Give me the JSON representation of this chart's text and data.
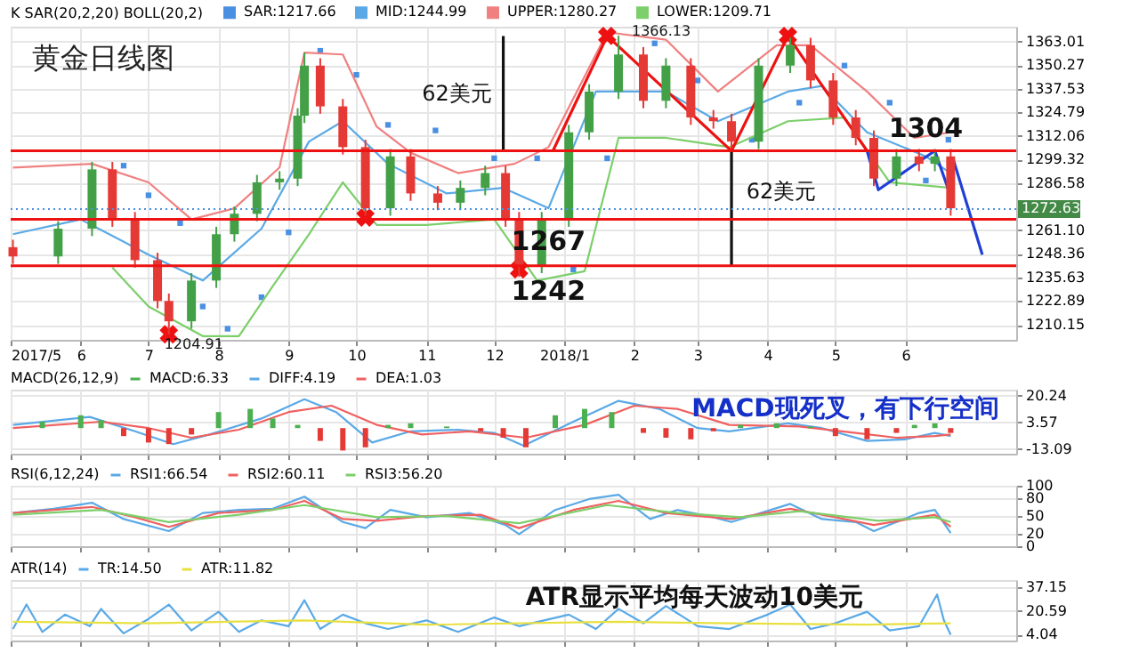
{
  "chart_data": [
    {
      "type": "candlestick",
      "title": "黄金日线图",
      "legend_title": "K  SAR(20,2,20)  BOLL(20,2)",
      "legend": "top left",
      "grid": true,
      "x": [
        "2017-05-02",
        "2017-05-22",
        "2017-06-06",
        "2017-06-15",
        "2017-06-25",
        "2017-07-05",
        "2017-07-10",
        "2017-07-20",
        "2017-07-31",
        "2017-08-08",
        "2017-08-18",
        "2017-08-28",
        "2017-09-05",
        "2017-09-08",
        "2017-09-15",
        "2017-09-25",
        "2017-10-05",
        "2017-10-16",
        "2017-10-25",
        "2017-11-06",
        "2017-11-16",
        "2017-11-27",
        "2017-12-06",
        "2017-12-12",
        "2017-12-22",
        "2018-01-03",
        "2018-01-12",
        "2018-01-25",
        "2018-02-05",
        "2018-02-15",
        "2018-02-26",
        "2018-03-08",
        "2018-03-16",
        "2018-03-28",
        "2018-04-11",
        "2018-04-20",
        "2018-04-30",
        "2018-05-10",
        "2018-05-18",
        "2018-05-28",
        "2018-06-07",
        "2018-06-14",
        "2018-06-21"
      ],
      "ohlc": [
        [
          1252,
          1256,
          1243,
          1247
        ],
        [
          1247,
          1266,
          1243,
          1262
        ],
        [
          1262,
          1298,
          1258,
          1294
        ],
        [
          1294,
          1298,
          1263,
          1267
        ],
        [
          1267,
          1271,
          1241,
          1245
        ],
        [
          1245,
          1249,
          1219,
          1223
        ],
        [
          1223,
          1227,
          1204.91,
          1212
        ],
        [
          1212,
          1238,
          1208,
          1234
        ],
        [
          1234,
          1263,
          1230,
          1259
        ],
        [
          1259,
          1274,
          1255,
          1270
        ],
        [
          1270,
          1291,
          1266,
          1287
        ],
        [
          1287,
          1293,
          1283,
          1289
        ],
        [
          1289,
          1327,
          1285,
          1323
        ],
        [
          1323,
          1357,
          1319,
          1350
        ],
        [
          1350,
          1354,
          1324,
          1328
        ],
        [
          1328,
          1332,
          1302,
          1306
        ],
        [
          1306,
          1310,
          1269,
          1273
        ],
        [
          1273,
          1305,
          1269,
          1301
        ],
        [
          1301,
          1305,
          1277,
          1281
        ],
        [
          1281,
          1285,
          1272,
          1276
        ],
        [
          1276,
          1288,
          1272,
          1284
        ],
        [
          1284,
          1296,
          1280,
          1292
        ],
        [
          1292,
          1296,
          1263,
          1267
        ],
        [
          1267,
          1271,
          1236,
          1242
        ],
        [
          1242,
          1271,
          1238,
          1267
        ],
        [
          1267,
          1318,
          1263,
          1314
        ],
        [
          1314,
          1340,
          1310,
          1336
        ],
        [
          1336,
          1366.13,
          1332,
          1356
        ],
        [
          1356,
          1360,
          1327,
          1331
        ],
        [
          1331,
          1354,
          1327,
          1350
        ],
        [
          1350,
          1354,
          1318,
          1322
        ],
        [
          1322,
          1326,
          1316,
          1320
        ],
        [
          1320,
          1324,
          1305,
          1309
        ],
        [
          1309,
          1354,
          1305,
          1350
        ],
        [
          1350,
          1365,
          1346,
          1361
        ],
        [
          1361,
          1365,
          1338,
          1342
        ],
        [
          1342,
          1346,
          1318,
          1322
        ],
        [
          1322,
          1326,
          1307,
          1311
        ],
        [
          1311,
          1315,
          1285,
          1289
        ],
        [
          1289,
          1305,
          1285,
          1301
        ],
        [
          1301,
          1305,
          1293,
          1297
        ],
        [
          1297,
          1305,
          1293,
          1301
        ],
        [
          1301,
          1305,
          1269,
          1273
        ]
      ],
      "colors": [
        "#e53935",
        "#43a047",
        "#43a047",
        "#e53935",
        "#e53935",
        "#e53935",
        "#e53935",
        "#43a047",
        "#43a047",
        "#43a047",
        "#43a047",
        "#43a047",
        "#43a047",
        "#43a047",
        "#e53935",
        "#e53935",
        "#e53935",
        "#43a047",
        "#e53935",
        "#e53935",
        "#43a047",
        "#43a047",
        "#e53935",
        "#e53935",
        "#43a047",
        "#43a047",
        "#43a047",
        "#43a047",
        "#e53935",
        "#43a047",
        "#e53935",
        "#e53935",
        "#e53935",
        "#43a047",
        "#43a047",
        "#e53935",
        "#e53935",
        "#e53935",
        "#e53935",
        "#43a047",
        "#e53935",
        "#43a047",
        "#e53935"
      ],
      "series": [
        {
          "name": "SAR:1217.66",
          "type": "scatter",
          "marker": "square",
          "color": "#4a90e2",
          "x": [
            "2017-06-20",
            "2017-07-01",
            "2017-07-15",
            "2017-07-25",
            "2017-08-05",
            "2017-08-20",
            "2017-09-01",
            "2017-09-15",
            "2017-10-01",
            "2017-10-15",
            "2017-11-05",
            "2017-12-01",
            "2017-12-20",
            "2018-01-05",
            "2018-01-20",
            "2018-02-10",
            "2018-03-01",
            "2018-03-25",
            "2018-04-15",
            "2018-05-05",
            "2018-05-25",
            "2018-06-10",
            "2018-06-20"
          ],
          "values": [
            1296,
            1280,
            1265,
            1220,
            1208,
            1225,
            1260,
            1358,
            1345,
            1318,
            1315,
            1300,
            1300,
            1240,
            1300,
            1362,
            1342,
            1310,
            1330,
            1350,
            1330,
            1288,
            1310
          ]
        },
        {
          "name": "MID:1244.99",
          "type": "line",
          "color": "#5aa9e6",
          "x": [
            "2017-05-02",
            "2017-06-01",
            "2017-07-01",
            "2017-07-25",
            "2017-08-20",
            "2017-09-10",
            "2017-09-25",
            "2017-10-15",
            "2017-11-10",
            "2017-12-05",
            "2017-12-25",
            "2018-01-15",
            "2018-02-15",
            "2018-03-10",
            "2018-04-10",
            "2018-04-25",
            "2018-05-15",
            "2018-06-10",
            "2018-06-21"
          ],
          "values": [
            1259,
            1267,
            1248,
            1234,
            1262,
            1309,
            1320,
            1297,
            1281,
            1284,
            1273,
            1336,
            1336,
            1320,
            1336,
            1339,
            1314,
            1301,
            1292
          ]
        },
        {
          "name": "UPPER:1280.27",
          "type": "line",
          "color": "#f08080",
          "x": [
            "2017-05-02",
            "2017-06-06",
            "2017-07-01",
            "2017-07-20",
            "2017-08-08",
            "2017-08-28",
            "2017-09-08",
            "2017-09-25",
            "2017-10-10",
            "2017-10-25",
            "2017-11-15",
            "2017-12-10",
            "2017-12-25",
            "2018-01-20",
            "2018-02-15",
            "2018-03-10",
            "2018-04-05",
            "2018-04-20",
            "2018-05-15",
            "2018-06-05",
            "2018-06-21"
          ],
          "values": [
            1295,
            1297,
            1287,
            1267,
            1273,
            1295,
            1357,
            1356,
            1317,
            1303,
            1292,
            1297,
            1306,
            1368,
            1364,
            1336,
            1361,
            1361,
            1336,
            1311,
            1314
          ]
        },
        {
          "name": "LOWER:1209.71",
          "type": "line",
          "color": "#7ccf6a",
          "x": [
            "2017-06-15",
            "2017-07-01",
            "2017-07-25",
            "2017-08-10",
            "2017-08-25",
            "2017-09-10",
            "2017-09-25",
            "2017-10-10",
            "2017-11-01",
            "2017-12-01",
            "2017-12-20",
            "2018-01-10",
            "2018-01-25",
            "2018-02-15",
            "2018-03-15",
            "2018-04-10",
            "2018-05-05",
            "2018-05-25",
            "2018-06-21"
          ],
          "values": [
            1241,
            1220,
            1204,
            1204,
            1231,
            1259,
            1287,
            1264,
            1264,
            1267,
            1234,
            1239,
            1311,
            1311,
            1306,
            1320,
            1322,
            1287,
            1284
          ]
        },
        {
          "type": "line",
          "color": "#ee1111",
          "x": [
            "2017-12-27",
            "2018-01-20",
            "2018-03-16",
            "2018-04-10",
            "2018-05-15"
          ],
          "values": [
            1304,
            1366,
            1304,
            1366,
            1304
          ]
        },
        {
          "type": "scatter",
          "marker": "cross",
          "color": "#ee1111",
          "x": [
            "2017-07-10",
            "2017-10-05",
            "2017-12-12",
            "2018-01-20",
            "2018-04-10"
          ],
          "values": [
            1205,
            1268,
            1240,
            1366,
            1366
          ]
        },
        {
          "type": "line",
          "color": "#1f3fd6",
          "x": [
            "2018-05-15",
            "2018-05-20",
            "2018-06-14",
            "2018-06-20"
          ],
          "values": [
            1304,
            1283,
            1304,
            1283
          ]
        },
        {
          "type": "line",
          "color": "#1f3fd6",
          "x": [
            "2018-06-22",
            "2018-07-05"
          ],
          "values": [
            1300,
            1248
          ]
        },
        {
          "type": "line",
          "color": "#111111",
          "x": [
            "2017-12-05",
            "2017-12-05"
          ],
          "values": [
            1304,
            1366
          ]
        },
        {
          "type": "line",
          "color": "#111111",
          "x": [
            "2018-03-16",
            "2018-03-16"
          ],
          "values": [
            1304,
            1242
          ]
        }
      ],
      "ref_lines": [
        {
          "axis": "y",
          "value": 1304,
          "color": "#ee1111"
        },
        {
          "axis": "y",
          "value": 1267,
          "color": "#ee1111"
        },
        {
          "axis": "y",
          "value": 1242,
          "color": "#ee1111"
        },
        {
          "axis": "y",
          "value": 1272.63,
          "label": "1272.63",
          "color": "#4a90e2",
          "line_style": "dotted"
        }
      ],
      "annotations": [
        {
          "text": "62美元",
          "x": "2017-12-05",
          "y": 1335
        },
        {
          "text": "62美元",
          "x": "2018-03-16",
          "y": 1282
        },
        {
          "text": "1304",
          "x": "2018-06-10",
          "y": 1304
        },
        {
          "text": "1267",
          "x": "2017-12-25",
          "y": 1267
        },
        {
          "text": "1242",
          "x": "2017-12-25",
          "y": 1242
        },
        {
          "text": "1204.91",
          "x": "2017-07-10",
          "y": 1204.91
        },
        {
          "text": "1366.13",
          "x": "2018-01-25",
          "y": 1366.13
        }
      ],
      "xlim": [
        "2017-05-01",
        "2018-07-20"
      ],
      "ylim": [
        1202,
        1371
      ],
      "xticks": [
        {
          "value": "2017-05-01",
          "label": "2017/5"
        },
        {
          "value": "2017-06-01",
          "label": "6"
        },
        {
          "value": "2017-07-01",
          "label": "7"
        },
        {
          "value": "2017-08-01",
          "label": "8"
        },
        {
          "value": "2017-09-01",
          "label": "9"
        },
        {
          "value": "2017-10-01",
          "label": "10"
        },
        {
          "value": "2017-11-01",
          "label": "11"
        },
        {
          "value": "2017-12-01",
          "label": "12"
        },
        {
          "value": "2018-01-01",
          "label": "2018/1"
        },
        {
          "value": "2018-02-01",
          "label": "2"
        },
        {
          "value": "2018-03-01",
          "label": "3"
        },
        {
          "value": "2018-04-01",
          "label": "4"
        },
        {
          "value": "2018-05-01",
          "label": "5"
        },
        {
          "value": "2018-06-01",
          "label": "6"
        }
      ],
      "yticks": [
        1210.15,
        1222.89,
        1235.63,
        1248.36,
        {
          "value": 1261.1,
          "label": "1261.10"
        },
        1286.58,
        1299.32,
        1312.06,
        1324.79,
        1337.53,
        1350.27,
        1363.01
      ]
    },
    {
      "type": "bar",
      "legend_title": "MACD(26,12,9)",
      "legend": "top left",
      "grid": true,
      "tick_labels": "y",
      "series": [
        {
          "name": "MACD:6.33",
          "type": "bar",
          "x": [
            "2017-05-15",
            "2017-06-01",
            "2017-06-10",
            "2017-06-20",
            "2017-07-01",
            "2017-07-10",
            "2017-07-20",
            "2017-08-01",
            "2017-08-15",
            "2017-08-25",
            "2017-09-05",
            "2017-09-15",
            "2017-09-25",
            "2017-10-05",
            "2017-10-15",
            "2017-10-25",
            "2017-11-10",
            "2017-11-25",
            "2017-12-05",
            "2017-12-15",
            "2017-12-28",
            "2018-01-10",
            "2018-01-22",
            "2018-02-05",
            "2018-02-15",
            "2018-02-26",
            "2018-03-08",
            "2018-03-20",
            "2018-04-05",
            "2018-04-20",
            "2018-05-01",
            "2018-05-15",
            "2018-05-28",
            "2018-06-05",
            "2018-06-14",
            "2018-06-21"
          ],
          "values": [
            4,
            8,
            5,
            -5,
            -9,
            -10,
            -4,
            10,
            12,
            6,
            2,
            -8,
            -14,
            -12,
            2,
            3,
            1,
            -2,
            -6,
            -12,
            8,
            12,
            10,
            -3,
            -6,
            -7,
            -2,
            2,
            3,
            1,
            -5,
            -7,
            -3,
            2,
            3,
            -3
          ],
          "color": "#4caf50",
          "colors": [
            "#4caf50",
            "#4caf50",
            "#4caf50",
            "#e53935",
            "#e53935",
            "#e53935",
            "#e53935",
            "#4caf50",
            "#4caf50",
            "#4caf50",
            "#4caf50",
            "#e53935",
            "#e53935",
            "#e53935",
            "#4caf50",
            "#4caf50",
            "#4caf50",
            "#e53935",
            "#e53935",
            "#e53935",
            "#4caf50",
            "#4caf50",
            "#4caf50",
            "#e53935",
            "#e53935",
            "#e53935",
            "#e53935",
            "#4caf50",
            "#4caf50",
            "#4caf50",
            "#e53935",
            "#e53935",
            "#e53935",
            "#4caf50",
            "#4caf50",
            "#e53935"
          ]
        },
        {
          "name": "DIFF:4.19",
          "type": "line",
          "color": "#5aa9e6",
          "x": [
            "2017-05-02",
            "2017-06-05",
            "2017-06-25",
            "2017-07-12",
            "2017-07-28",
            "2017-08-20",
            "2017-09-08",
            "2017-09-22",
            "2017-10-08",
            "2017-10-25",
            "2017-11-15",
            "2017-12-01",
            "2017-12-14",
            "2018-01-05",
            "2018-01-25",
            "2018-02-12",
            "2018-03-01",
            "2018-03-15",
            "2018-04-10",
            "2018-04-25",
            "2018-05-15",
            "2018-06-01",
            "2018-06-14",
            "2018-06-21"
          ],
          "values": [
            2,
            7,
            -2,
            -10,
            -4,
            6,
            18,
            10,
            -9,
            -2,
            -1,
            -3,
            -11,
            4,
            17,
            12,
            0,
            -2,
            3,
            0,
            -8,
            -7,
            -3,
            -5
          ]
        },
        {
          "name": "DEA:1.03",
          "type": "line",
          "color": "#f06060",
          "x": [
            "2017-05-02",
            "2017-06-10",
            "2017-07-01",
            "2017-07-20",
            "2017-08-10",
            "2017-09-01",
            "2017-09-20",
            "2017-10-10",
            "2017-10-30",
            "2017-11-20",
            "2017-12-15",
            "2018-01-10",
            "2018-02-01",
            "2018-02-20",
            "2018-03-15",
            "2018-04-15",
            "2018-05-10",
            "2018-05-28",
            "2018-06-14",
            "2018-06-21"
          ],
          "values": [
            0,
            4,
            0,
            -6,
            -1,
            10,
            14,
            2,
            -4,
            -2,
            -6,
            2,
            14,
            12,
            2,
            1,
            -3,
            -6,
            -5,
            -4
          ]
        }
      ],
      "annotations": [
        "MACD现死叉，有下行空间"
      ],
      "xlim": [
        "2017-05-01",
        "2018-07-20"
      ],
      "ylim": [
        -16,
        24
      ],
      "xticks": [
        {
          "value": "2017-05-01",
          "label": null
        },
        {
          "value": "2017-06-01",
          "label": null
        },
        {
          "value": "2017-07-01",
          "label": null
        },
        {
          "value": "2017-08-01",
          "label": null
        },
        {
          "value": "2017-09-01",
          "label": null
        },
        {
          "value": "2017-10-01",
          "label": null
        },
        {
          "value": "2017-11-01",
          "label": null
        },
        {
          "value": "2017-12-01",
          "label": null
        },
        {
          "value": "2018-01-01",
          "label": null
        },
        {
          "value": "2018-02-01",
          "label": null
        },
        {
          "value": "2018-03-01",
          "label": null
        },
        {
          "value": "2018-04-01",
          "label": null
        },
        {
          "value": "2018-05-01",
          "label": null
        },
        {
          "value": "2018-06-01",
          "label": null
        }
      ],
      "yticks": [
        -13.09,
        3.57,
        20.24
      ]
    },
    {
      "type": "line",
      "legend_title": "RSI(6,12,24)",
      "legend": "top left",
      "grid": true,
      "tick_labels": "y",
      "series": [
        {
          "name": "RSI1:66.54",
          "type": "line",
          "color": "#5aa9e6",
          "x": [
            "2017-05-02",
            "2017-05-20",
            "2017-06-06",
            "2017-06-20",
            "2017-07-10",
            "2017-07-25",
            "2017-08-10",
            "2017-08-25",
            "2017-09-08",
            "2017-09-25",
            "2017-10-05",
            "2017-10-16",
            "2017-11-01",
            "2017-11-20",
            "2017-12-06",
            "2017-12-12",
            "2017-12-28",
            "2018-01-12",
            "2018-01-25",
            "2018-02-08",
            "2018-02-20",
            "2018-03-08",
            "2018-03-16",
            "2018-04-11",
            "2018-04-25",
            "2018-05-10",
            "2018-05-18",
            "2018-06-07",
            "2018-06-14",
            "2018-06-21"
          ],
          "values": [
            55,
            62,
            72,
            45,
            25,
            55,
            60,
            62,
            82,
            40,
            30,
            60,
            48,
            55,
            35,
            20,
            60,
            78,
            85,
            45,
            60,
            48,
            40,
            70,
            45,
            40,
            25,
            55,
            60,
            22
          ]
        },
        {
          "name": "RSI2:60.11",
          "type": "line",
          "color": "#f06060",
          "x": [
            "2017-05-02",
            "2017-06-06",
            "2017-06-25",
            "2017-07-10",
            "2017-08-01",
            "2017-08-25",
            "2017-09-08",
            "2017-09-25",
            "2017-10-10",
            "2017-11-01",
            "2017-11-25",
            "2017-12-12",
            "2018-01-05",
            "2018-01-25",
            "2018-02-15",
            "2018-03-16",
            "2018-04-11",
            "2018-05-01",
            "2018-05-18",
            "2018-06-14",
            "2018-06-21"
          ],
          "values": [
            55,
            65,
            48,
            32,
            55,
            60,
            75,
            45,
            42,
            50,
            52,
            30,
            60,
            75,
            55,
            45,
            62,
            48,
            35,
            52,
            32
          ]
        },
        {
          "name": "RSI3:56.20",
          "type": "line",
          "color": "#7ccf6a",
          "x": [
            "2017-05-02",
            "2017-06-10",
            "2017-07-10",
            "2017-08-10",
            "2017-09-08",
            "2017-10-10",
            "2017-11-10",
            "2017-12-12",
            "2018-01-20",
            "2018-02-20",
            "2018-03-20",
            "2018-04-15",
            "2018-05-20",
            "2018-06-14",
            "2018-06-21"
          ],
          "values": [
            52,
            60,
            40,
            52,
            68,
            48,
            50,
            38,
            68,
            55,
            48,
            58,
            42,
            48,
            40
          ]
        }
      ],
      "xlim": [
        "2017-05-01",
        "2018-07-20"
      ],
      "ylim": [
        0,
        100
      ],
      "xticks": [
        {
          "value": "2017-05-01",
          "label": null
        },
        {
          "value": "2017-06-01",
          "label": null
        },
        {
          "value": "2017-07-01",
          "label": null
        },
        {
          "value": "2017-08-01",
          "label": null
        },
        {
          "value": "2017-09-01",
          "label": null
        },
        {
          "value": "2017-10-01",
          "label": null
        },
        {
          "value": "2017-11-01",
          "label": null
        },
        {
          "value": "2017-12-01",
          "label": null
        },
        {
          "value": "2018-01-01",
          "label": null
        },
        {
          "value": "2018-02-01",
          "label": null
        },
        {
          "value": "2018-03-01",
          "label": null
        },
        {
          "value": "2018-04-01",
          "label": null
        },
        {
          "value": "2018-05-01",
          "label": null
        },
        {
          "value": "2018-06-01",
          "label": null
        }
      ],
      "yticks": [
        0,
        20,
        50,
        80,
        100
      ]
    },
    {
      "type": "line",
      "legend_title": "ATR(14)",
      "legend": "top left",
      "grid": true,
      "tick_labels": "y",
      "series": [
        {
          "name": "TR:14.50",
          "type": "line",
          "color": "#5aa9e6",
          "x": [
            "2017-05-02",
            "2017-05-08",
            "2017-05-15",
            "2017-05-25",
            "2017-06-05",
            "2017-06-10",
            "2017-06-20",
            "2017-07-01",
            "2017-07-10",
            "2017-07-20",
            "2017-08-01",
            "2017-08-10",
            "2017-08-20",
            "2017-09-01",
            "2017-09-08",
            "2017-09-15",
            "2017-09-25",
            "2017-10-05",
            "2017-10-15",
            "2017-11-01",
            "2017-11-15",
            "2017-12-01",
            "2017-12-12",
            "2018-01-03",
            "2018-01-15",
            "2018-01-25",
            "2018-02-05",
            "2018-02-15",
            "2018-03-01",
            "2018-03-15",
            "2018-04-01",
            "2018-04-11",
            "2018-04-20",
            "2018-05-01",
            "2018-05-15",
            "2018-05-25",
            "2018-06-07",
            "2018-06-15",
            "2018-06-18",
            "2018-06-21"
          ],
          "values": [
            8,
            25,
            6,
            18,
            10,
            22,
            5,
            15,
            25,
            7,
            20,
            6,
            14,
            10,
            28,
            8,
            18,
            12,
            8,
            14,
            6,
            16,
            10,
            18,
            8,
            22,
            12,
            24,
            10,
            8,
            18,
            25,
            8,
            12,
            20,
            7,
            10,
            32,
            14,
            4
          ]
        },
        {
          "name": "ATR:11.82",
          "type": "line",
          "color": "#e8e040",
          "x": [
            "2017-05-02",
            "2017-07-01",
            "2017-09-08",
            "2017-11-01",
            "2018-01-25",
            "2018-03-15",
            "2018-05-15",
            "2018-06-21"
          ],
          "values": [
            13,
            12,
            14,
            11,
            13,
            12,
            11,
            12
          ]
        }
      ],
      "annotations": [
        "ATR显示平均每天波动10美元"
      ],
      "xlim": [
        "2017-05-01",
        "2018-07-20"
      ],
      "ylim": [
        0,
        42
      ],
      "xticks": [
        {
          "value": "2017-05-01",
          "label": null
        },
        {
          "value": "2017-06-01",
          "label": null
        },
        {
          "value": "2017-07-01",
          "label": null
        },
        {
          "value": "2017-08-01",
          "label": null
        },
        {
          "value": "2017-09-01",
          "label": null
        },
        {
          "value": "2017-10-01",
          "label": null
        },
        {
          "value": "2017-11-01",
          "label": null
        },
        {
          "value": "2017-12-01",
          "label": null
        },
        {
          "value": "2018-01-01",
          "label": null
        },
        {
          "value": "2018-02-01",
          "label": null
        },
        {
          "value": "2018-03-01",
          "label": null
        },
        {
          "value": "2018-04-01",
          "label": null
        },
        {
          "value": "2018-05-01",
          "label": null
        },
        {
          "value": "2018-06-01",
          "label": null
        }
      ],
      "yticks": [
        4.04,
        20.59,
        37.15
      ]
    }
  ]
}
